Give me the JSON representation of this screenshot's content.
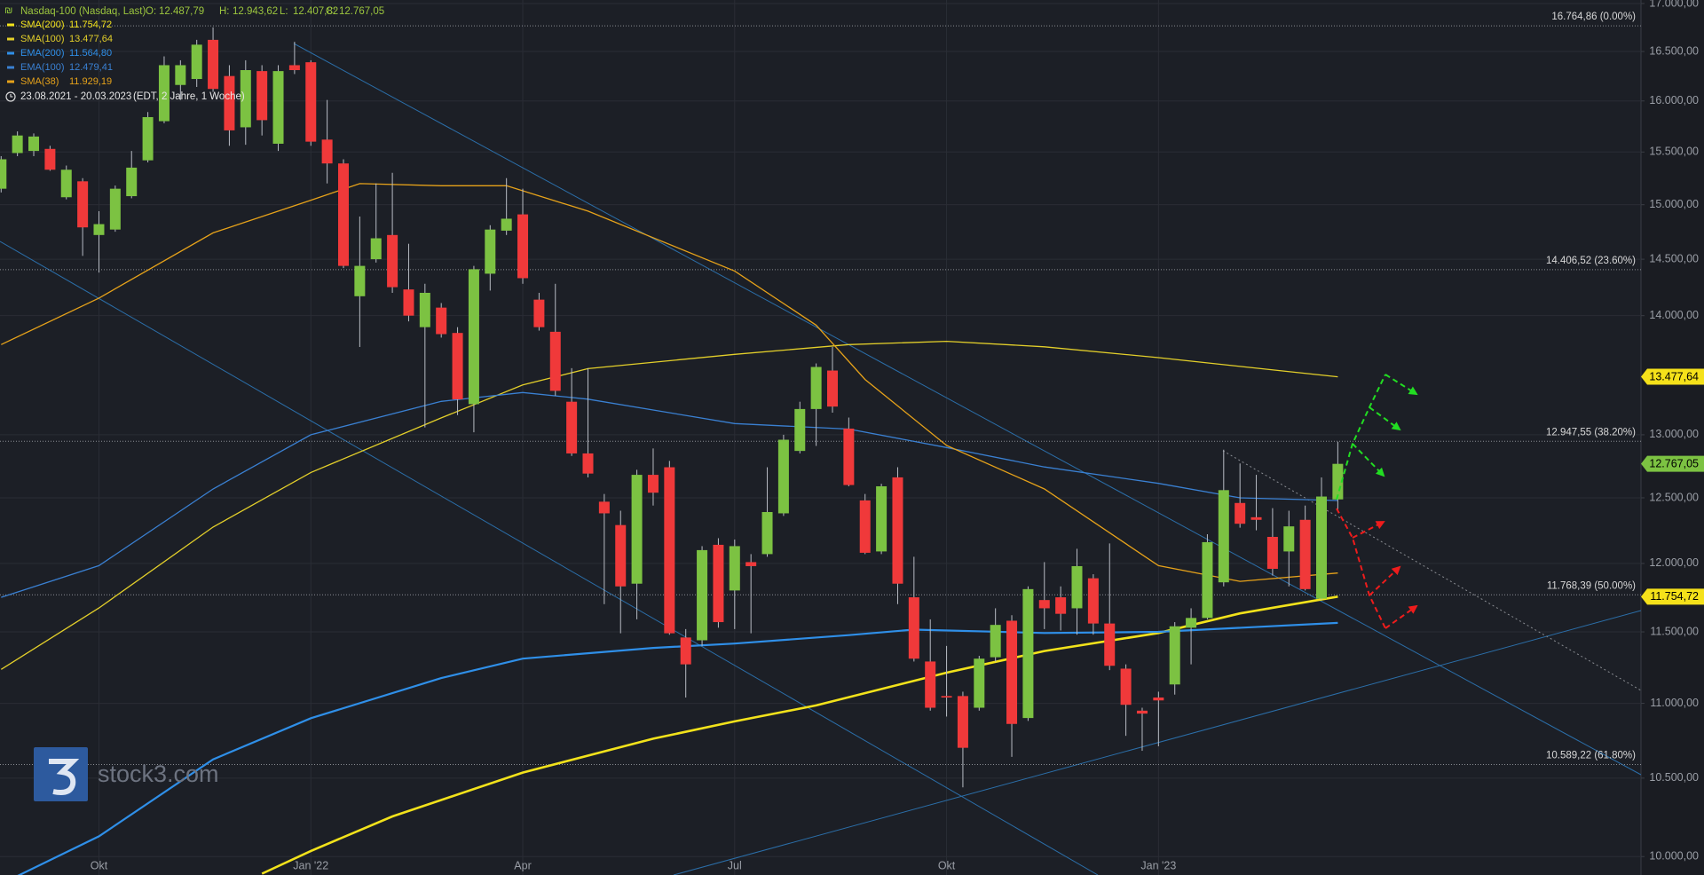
{
  "chart_data": {
    "type": "candlestick",
    "title": "Nasdaq-100 (Nasdaq, Last)",
    "ohlc": [
      {
        "key": "O:",
        "text": "12.487,79"
      },
      {
        "key": "H:",
        "text": "12.943,62"
      },
      {
        "key": "L:",
        "text": "12.407,82"
      },
      {
        "key": "C:",
        "text": "12.767,05"
      }
    ],
    "date_range": "23.08.2021 - 20.03.2023",
    "date_note": "(EDT, 2 Jahre, 1 Woche)",
    "watermark": "stock3.com",
    "log_scale": true,
    "grid": true,
    "xlim": [
      -0.07,
      100.6
    ],
    "ylim": [
      9886,
      17037
    ],
    "xticks": [
      {
        "value": 6,
        "label": "Okt"
      },
      {
        "value": 19,
        "label": "Jan '22"
      },
      {
        "value": 32,
        "label": "Apr"
      },
      {
        "value": 45,
        "label": "Jul"
      },
      {
        "value": 58,
        "label": "Okt"
      },
      {
        "value": 71,
        "label": "Jan '23"
      }
    ],
    "yticks": [
      {
        "value": 10000,
        "label": "10.000,00"
      },
      {
        "value": 10500,
        "label": "10.500,00"
      },
      {
        "value": 11000,
        "label": "11.000,00"
      },
      {
        "value": 11500,
        "label": "11.500,00"
      },
      {
        "value": 12000,
        "label": "12.000,00"
      },
      {
        "value": 12500,
        "label": "12.500,00"
      },
      {
        "value": 13000,
        "label": "13.000,00"
      },
      {
        "value": 14000,
        "label": "14.000,00"
      },
      {
        "value": 14500,
        "label": "14.500,00"
      },
      {
        "value": 15000,
        "label": "15.000,00"
      },
      {
        "value": 15500,
        "label": "15.500,00"
      },
      {
        "value": 16000,
        "label": "16.000,00"
      },
      {
        "value": 16500,
        "label": "16.500,00"
      },
      {
        "value": 17000,
        "label": "17.000,00"
      }
    ],
    "candles": {
      "up_color": "#7cc242",
      "down_color": "#f0393a",
      "open": [
        15150,
        15490,
        15510,
        15530,
        15070,
        15220,
        14720,
        14770,
        15080,
        15420,
        15800,
        16160,
        16220,
        16620,
        16250,
        15740,
        16300,
        15580,
        16360,
        16390,
        15620,
        15390,
        14170,
        14500,
        14720,
        14230,
        13900,
        14070,
        13850,
        13250,
        14370,
        14760,
        14910,
        14140,
        13860,
        13270,
        12850,
        12470,
        12290,
        11850,
        12680,
        12740,
        11460,
        11440,
        12140,
        11800,
        12010,
        12070,
        12380,
        12870,
        13210,
        13530,
        13050,
        12480,
        12090,
        12660,
        11750,
        11290,
        11050,
        11050,
        10970,
        11320,
        11580,
        10900,
        11730,
        11750,
        11670,
        11890,
        11560,
        11240,
        10950,
        11040,
        11130,
        11530,
        11600,
        11860,
        12460,
        12350,
        12200,
        12090,
        12330,
        11740,
        12487.79
      ],
      "high": [
        15460,
        15700,
        15680,
        15560,
        15370,
        15250,
        14940,
        15180,
        15510,
        15890,
        16450,
        16410,
        16620,
        16750,
        16360,
        16410,
        16360,
        16360,
        16600,
        16410,
        16010,
        15430,
        14890,
        15200,
        15300,
        14640,
        14280,
        14110,
        13900,
        14440,
        14810,
        15250,
        15150,
        14200,
        14280,
        13550,
        13550,
        12530,
        12400,
        12720,
        12890,
        12790,
        11520,
        12130,
        12190,
        12180,
        12070,
        12740,
        13000,
        13270,
        13590,
        13730,
        13140,
        12530,
        12610,
        12740,
        12050,
        11590,
        11400,
        11080,
        11330,
        11670,
        11620,
        11830,
        12010,
        11830,
        12110,
        11920,
        12150,
        11270,
        10970,
        11080,
        11570,
        11670,
        12220,
        12880,
        12770,
        12680,
        12420,
        12400,
        12440,
        12660,
        12943.62
      ],
      "low": [
        15115,
        15460,
        15460,
        15320,
        15050,
        14530,
        14380,
        14750,
        15060,
        15400,
        15780,
        16010,
        16140,
        16090,
        15560,
        15570,
        15660,
        15510,
        16270,
        15560,
        15200,
        14420,
        13730,
        14470,
        14200,
        13950,
        13060,
        13810,
        13160,
        13020,
        14220,
        14720,
        14280,
        13870,
        13320,
        12830,
        12660,
        11700,
        11490,
        11590,
        12440,
        11480,
        11040,
        11400,
        11530,
        11520,
        11490,
        12050,
        12360,
        12850,
        12910,
        13180,
        12590,
        12070,
        12070,
        11700,
        11290,
        10950,
        10910,
        10440,
        10950,
        11290,
        10640,
        10880,
        11520,
        11510,
        11480,
        11480,
        11230,
        10780,
        10680,
        10710,
        11060,
        11270,
        11590,
        11830,
        12270,
        12250,
        11910,
        11830,
        11800,
        11730,
        12407.82
      ],
      "close": [
        15430,
        15660,
        15650,
        15330,
        15330,
        14790,
        14820,
        15150,
        15350,
        15840,
        16360,
        16360,
        16570,
        16120,
        15710,
        16310,
        15810,
        16300,
        16310,
        15600,
        15390,
        14440,
        14440,
        14690,
        14250,
        14000,
        14200,
        13840,
        13290,
        14410,
        14770,
        14870,
        14330,
        13900,
        13360,
        12850,
        12690,
        12380,
        11830,
        12680,
        12540,
        11490,
        11270,
        12100,
        11570,
        12130,
        11980,
        12390,
        12960,
        13210,
        13560,
        13230,
        12600,
        12080,
        12590,
        11850,
        11310,
        10970,
        11040,
        10700,
        11310,
        11550,
        10860,
        11810,
        11670,
        11630,
        11980,
        11560,
        11260,
        10990,
        10930,
        11020,
        11540,
        11600,
        12160,
        12560,
        12300,
        12330,
        11960,
        12280,
        11810,
        12510,
        12767.05
      ]
    },
    "series": [
      {
        "name": "SMA(200)",
        "color": "#f2e21b",
        "width": 2.6,
        "last_label": "11.754,72",
        "x": [
          16,
          19,
          24,
          32,
          40,
          45,
          50,
          58,
          64,
          71,
          76,
          82
        ],
        "values": [
          9894,
          10035,
          10253,
          10536,
          10761,
          10877,
          10986,
          11212,
          11364,
          11492,
          11633,
          11754.72
        ]
      },
      {
        "name": "SMA(100)",
        "color": "#e3cf2a",
        "width": 1.3,
        "last_label": "13.477,64",
        "x": [
          0,
          6,
          13,
          19,
          27,
          32,
          36,
          45,
          52,
          58,
          64,
          71,
          76,
          82
        ],
        "values": [
          11235,
          11672,
          12275,
          12699,
          13137,
          13409,
          13546,
          13667,
          13750,
          13778,
          13731,
          13639,
          13565,
          13477.64
        ]
      },
      {
        "name": "EMA(200)",
        "color": "#2f8fe8",
        "width": 2.2,
        "last_label": "11.564,80",
        "x": [
          1,
          6,
          13,
          19,
          27,
          32,
          40,
          45,
          52,
          56,
          64,
          71,
          82
        ],
        "values": [
          9880,
          10127,
          10623,
          10899,
          11174,
          11310,
          11386,
          11417,
          11477,
          11516,
          11492,
          11500,
          11564.8
        ]
      },
      {
        "name": "EMA(100)",
        "color": "#3a80d2",
        "width": 1.3,
        "last_label": "12.479,41",
        "x": [
          0,
          6,
          13,
          19,
          27,
          32,
          36,
          45,
          52,
          58,
          64,
          71,
          76,
          82
        ],
        "values": [
          11750,
          11984,
          12569,
          13000,
          13273,
          13346,
          13291,
          13091,
          13046,
          12897,
          12742,
          12613,
          12500,
          12479.41
        ]
      },
      {
        "name": "SMA(38)",
        "color": "#e6a21a",
        "width": 1.3,
        "last_label": "11.929,19",
        "x": [
          0,
          6,
          13,
          19,
          22,
          27,
          31,
          36,
          45,
          50,
          53,
          58,
          64,
          71,
          76,
          82
        ],
        "values": [
          13750,
          14154,
          14740,
          15042,
          15198,
          15178,
          15178,
          14940,
          14394,
          13917,
          13455,
          12914,
          12569,
          11984,
          11867,
          11929.19
        ]
      }
    ],
    "fib_levels": [
      {
        "value": 16764.86,
        "label": "16.764,86 (0.00%)"
      },
      {
        "value": 14406.52,
        "label": "14.406,52 (23.60%)"
      },
      {
        "value": 12947.55,
        "label": "12.947,55 (38.20%)"
      },
      {
        "value": 11768.39,
        "label": "11.768,39 (50.00%)"
      },
      {
        "value": 10589.22,
        "label": "10.589,22 (61.80%)"
      }
    ],
    "badges": [
      {
        "series": 1,
        "bg": "#f5e11a",
        "fg": "#000000"
      },
      {
        "close": true,
        "bg": "#7cc242",
        "fg": "#000000"
      },
      {
        "series": 0,
        "bg": "#f5e11a",
        "fg": "#000000"
      }
    ]
  }
}
